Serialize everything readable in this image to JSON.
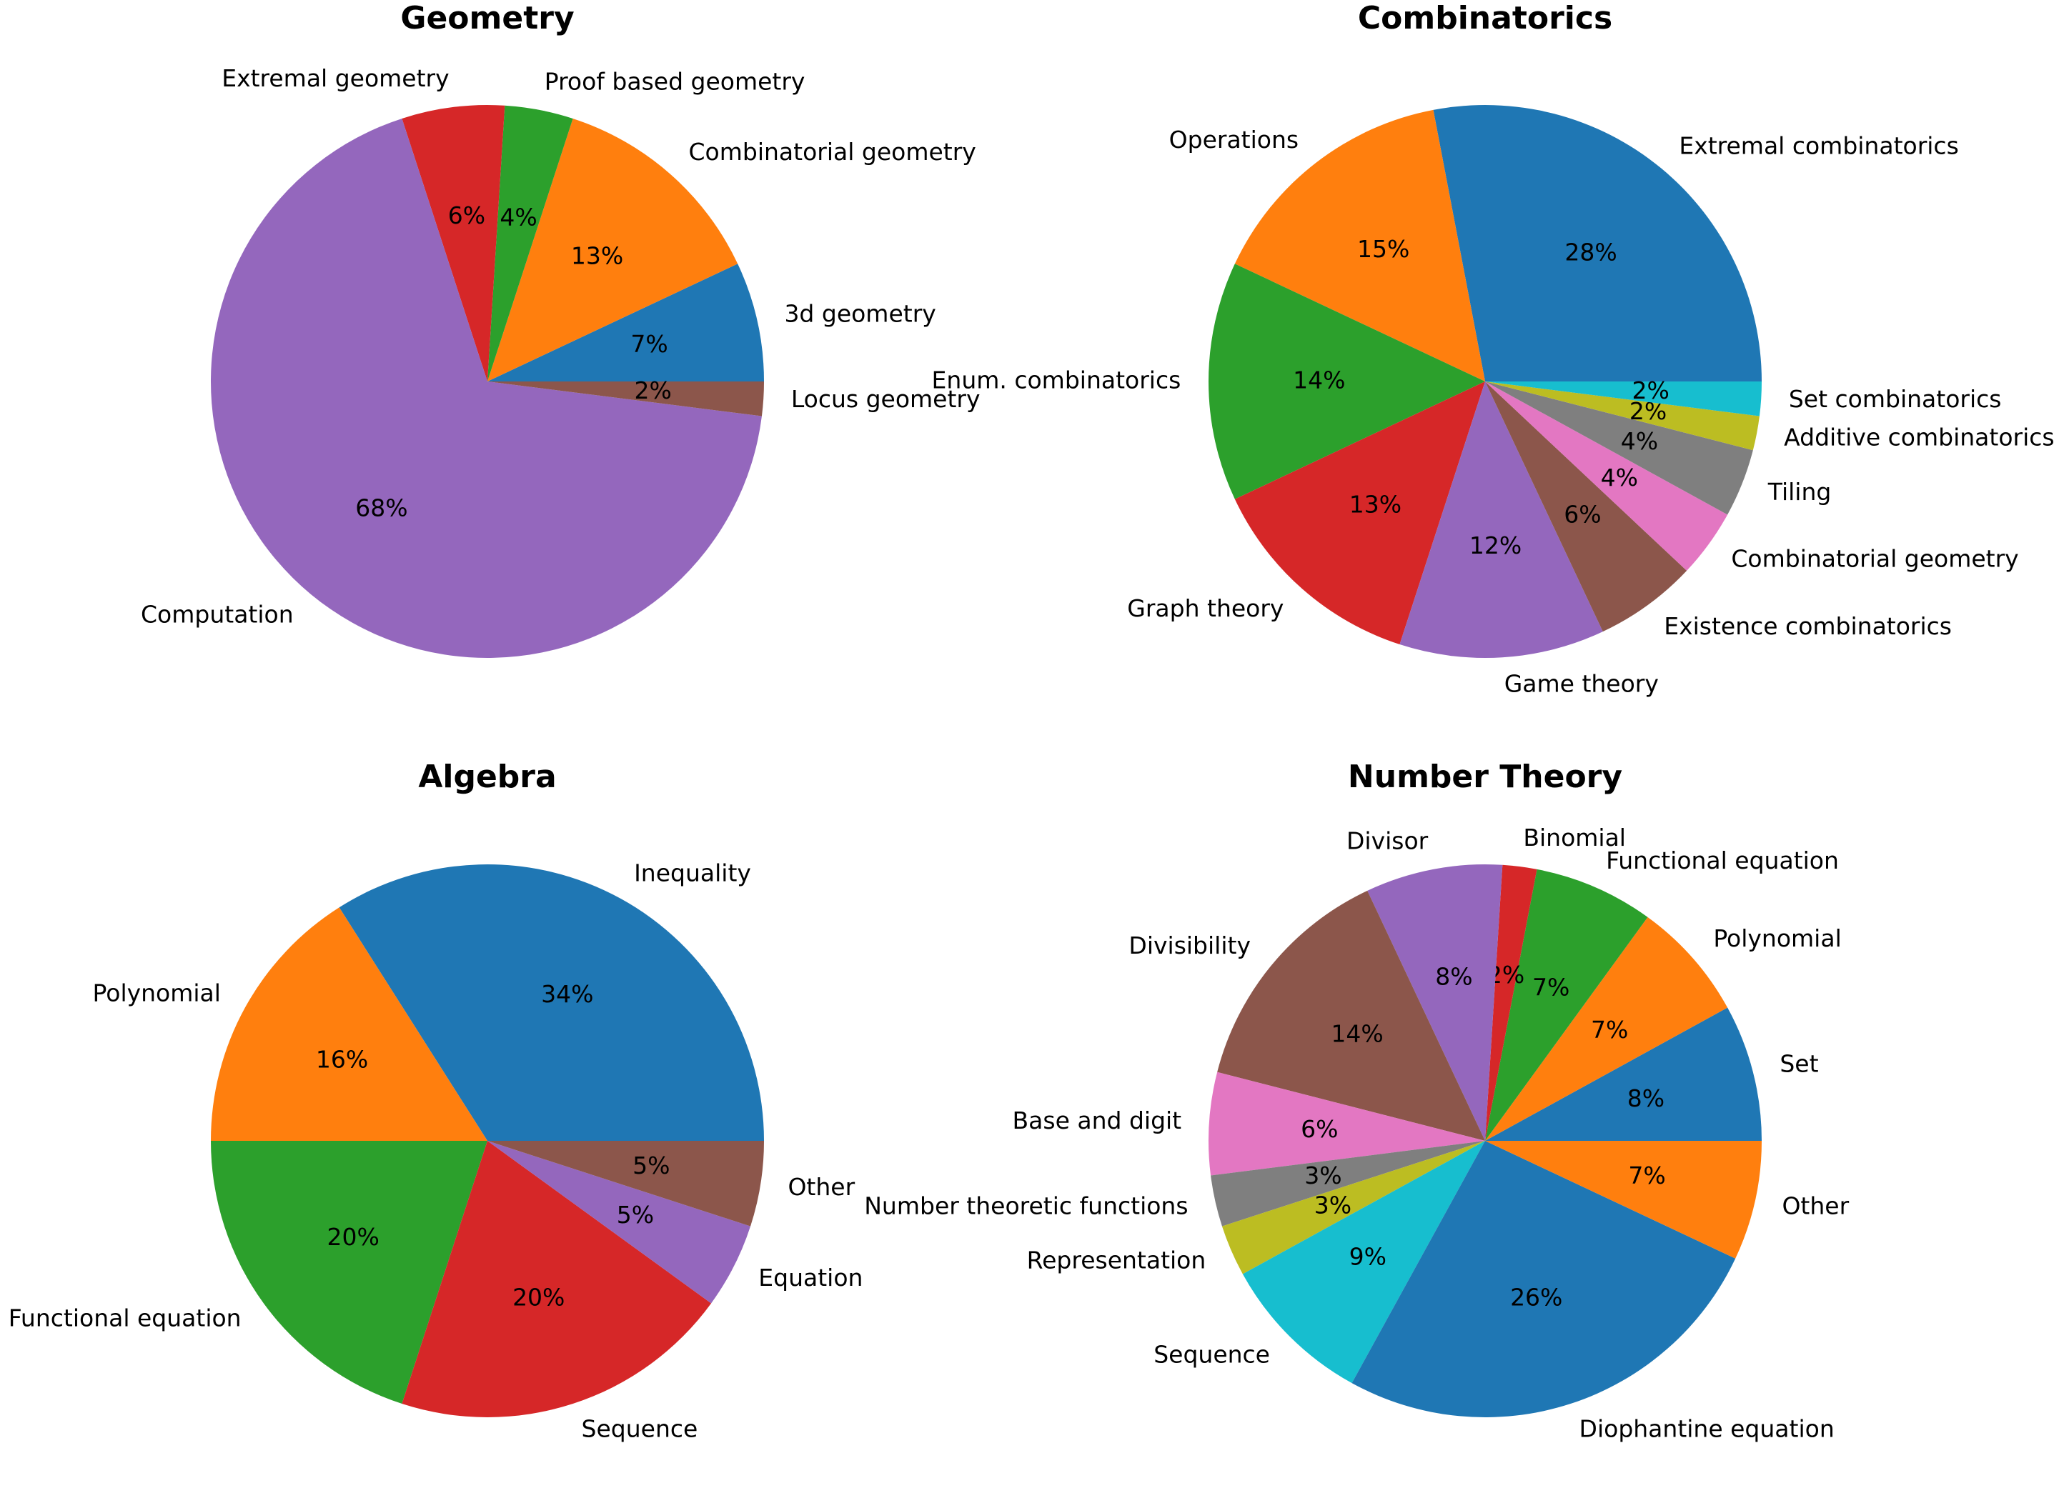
{
  "chart_data": [
    {
      "type": "pie",
      "title": "Geometry",
      "categories": [
        "3d geometry",
        "Combinatorial geometry",
        "Proof based geometry",
        "Extremal geometry",
        "Computation",
        "Locus geometry"
      ],
      "values": [
        7,
        13,
        4,
        6,
        68,
        2
      ],
      "value_labels": [
        "7%",
        "13%",
        "4%",
        "6%",
        "68%",
        "2%"
      ],
      "colors": [
        "#1f77b4",
        "#ff7f0e",
        "#2ca02c",
        "#d62728",
        "#9467bd",
        "#8c564b"
      ]
    },
    {
      "type": "pie",
      "title": "Combinatorics",
      "categories": [
        "Extremal combinatorics",
        "Operations",
        "Enum. combinatorics",
        "Graph theory",
        "Game theory",
        "Existence combinatorics",
        "Combinatorial geometry",
        "Tiling",
        "Additive combinatorics",
        "Set combinatorics"
      ],
      "values": [
        28,
        15,
        14,
        13,
        12,
        6,
        4,
        4,
        2,
        2
      ],
      "value_labels": [
        "28%",
        "15%",
        "14%",
        "13%",
        "12%",
        "6%",
        "4%",
        "4%",
        "2%",
        "2%"
      ],
      "colors": [
        "#1f77b4",
        "#ff7f0e",
        "#2ca02c",
        "#d62728",
        "#9467bd",
        "#8c564b",
        "#e377c2",
        "#7f7f7f",
        "#bcbd22",
        "#17becf"
      ]
    },
    {
      "type": "pie",
      "title": "Algebra",
      "categories": [
        "Inequality",
        "Polynomial",
        "Functional equation",
        "Sequence",
        "Equation",
        "Other"
      ],
      "values": [
        34,
        16,
        20,
        20,
        5,
        5
      ],
      "value_labels": [
        "34%",
        "16%",
        "20%",
        "20%",
        "5%",
        "5%"
      ],
      "colors": [
        "#1f77b4",
        "#ff7f0e",
        "#2ca02c",
        "#d62728",
        "#9467bd",
        "#8c564b"
      ]
    },
    {
      "type": "pie",
      "title": "Number Theory",
      "categories": [
        "Set",
        "Polynomial",
        "Functional equation",
        "Binomial",
        "Divisor",
        "Divisibility",
        "Base and digit",
        "Number theoretic functions",
        "Representation",
        "Sequence",
        "Diophantine equation",
        "Other"
      ],
      "values": [
        8,
        7,
        7,
        2,
        8,
        14,
        6,
        3,
        3,
        9,
        26,
        7
      ],
      "value_labels": [
        "8%",
        "7%",
        "7%",
        "2%",
        "8%",
        "14%",
        "6%",
        "3%",
        "3%",
        "9%",
        "26%",
        "7%"
      ],
      "colors": [
        "#1f77b4",
        "#ff7f0e",
        "#2ca02c",
        "#d62728",
        "#9467bd",
        "#8c564b",
        "#e377c2",
        "#7f7f7f",
        "#bcbd22",
        "#17becf",
        "#1f77b4",
        "#ff7f0e"
      ]
    }
  ]
}
